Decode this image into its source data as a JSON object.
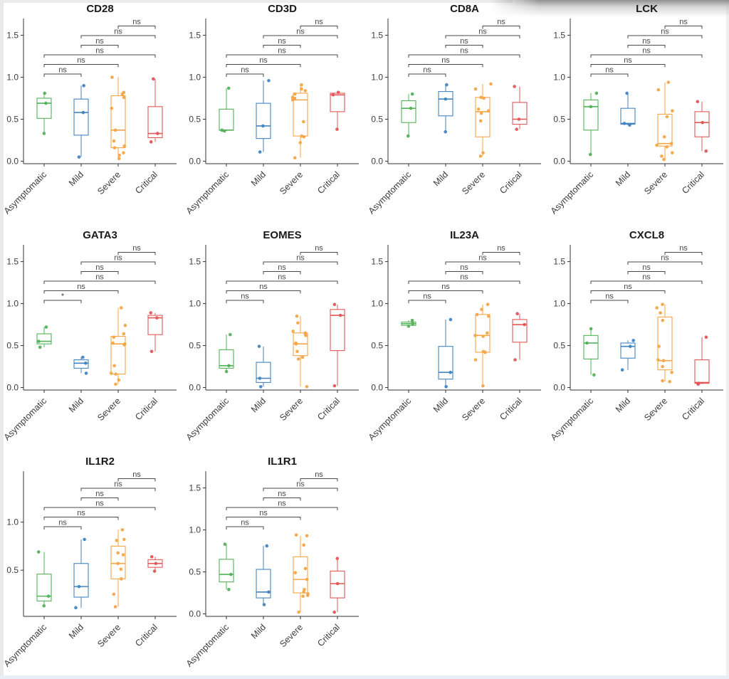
{
  "figure_title": "",
  "chart_data": {
    "type": "box",
    "categories": [
      "Asymptomatic",
      "Mild",
      "Severe",
      "Critical"
    ],
    "group_colors": {
      "Asymptomatic": "#54b25a",
      "Mild": "#4285c2",
      "Severe": "#f6a546",
      "Critical": "#e25757"
    },
    "comparisons": [
      [
        0,
        1
      ],
      [
        0,
        2
      ],
      [
        0,
        3
      ],
      [
        1,
        2
      ],
      [
        1,
        3
      ],
      [
        2,
        3
      ]
    ],
    "ylabel": "",
    "xlabel": "",
    "grid": "off",
    "legend": "none",
    "panels": [
      {
        "title": "CD28",
        "yticks": [
          0.0,
          0.5,
          1.0,
          1.5
        ],
        "ylim": [
          -0.03,
          1.7
        ],
        "sig_labels": [
          "ns",
          "ns",
          "ns",
          "ns",
          "ns",
          "ns"
        ],
        "groups": [
          {
            "name": "Asymptomatic",
            "whisker_low": 0.33,
            "q1": 0.51,
            "median": 0.69,
            "q3": 0.75,
            "whisker_high": 0.81,
            "points": [
              0.81,
              0.69,
              0.33
            ]
          },
          {
            "name": "Mild",
            "whisker_low": 0.05,
            "q1": 0.31,
            "median": 0.58,
            "q3": 0.74,
            "whisker_high": 0.9,
            "points": [
              0.9,
              0.58,
              0.05
            ]
          },
          {
            "name": "Severe",
            "whisker_low": 0.03,
            "q1": 0.16,
            "median": 0.37,
            "q3": 0.78,
            "whisker_high": 1.0,
            "points": [
              1.0,
              0.82,
              0.8,
              0.76,
              0.63,
              0.37,
              0.24,
              0.18,
              0.16,
              0.1,
              0.07,
              0.03
            ]
          },
          {
            "name": "Critical",
            "whisker_low": 0.23,
            "q1": 0.28,
            "median": 0.33,
            "q3": 0.65,
            "whisker_high": 0.98,
            "points": [
              0.98,
              0.33,
              0.23
            ]
          }
        ]
      },
      {
        "title": "CD3D",
        "yticks": [
          0.0,
          0.5,
          1.0,
          1.5
        ],
        "ylim": [
          -0.03,
          1.7
        ],
        "sig_labels": [
          "ns",
          "ns",
          "ns",
          "ns",
          "ns",
          "ns"
        ],
        "groups": [
          {
            "name": "Asymptomatic",
            "whisker_low": 0.36,
            "q1": 0.37,
            "median": 0.37,
            "q3": 0.62,
            "whisker_high": 0.87,
            "points": [
              0.87,
              0.37,
              0.36
            ]
          },
          {
            "name": "Mild",
            "whisker_low": 0.11,
            "q1": 0.27,
            "median": 0.42,
            "q3": 0.69,
            "whisker_high": 0.96,
            "points": [
              0.96,
              0.42,
              0.11
            ]
          },
          {
            "name": "Severe",
            "whisker_low": 0.04,
            "q1": 0.3,
            "median": 0.73,
            "q3": 0.81,
            "whisker_high": 0.91,
            "points": [
              0.91,
              0.86,
              0.84,
              0.8,
              0.76,
              0.75,
              0.73,
              0.47,
              0.3,
              0.29,
              0.22,
              0.04
            ]
          },
          {
            "name": "Critical",
            "whisker_low": 0.38,
            "q1": 0.59,
            "median": 0.79,
            "q3": 0.81,
            "whisker_high": 0.82,
            "points": [
              0.82,
              0.79,
              0.38
            ]
          }
        ]
      },
      {
        "title": "CD8A",
        "yticks": [
          0.0,
          0.5,
          1.0,
          1.5
        ],
        "ylim": [
          -0.03,
          1.7
        ],
        "sig_labels": [
          "ns",
          "ns",
          "ns",
          "ns",
          "ns",
          "ns"
        ],
        "groups": [
          {
            "name": "Asymptomatic",
            "whisker_low": 0.3,
            "q1": 0.46,
            "median": 0.63,
            "q3": 0.72,
            "whisker_high": 0.8,
            "points": [
              0.8,
              0.63,
              0.3
            ]
          },
          {
            "name": "Mild",
            "whisker_low": 0.35,
            "q1": 0.54,
            "median": 0.74,
            "q3": 0.83,
            "whisker_high": 0.91,
            "points": [
              0.91,
              0.74,
              0.35
            ]
          },
          {
            "name": "Severe",
            "whisker_low": 0.06,
            "q1": 0.29,
            "median": 0.59,
            "q3": 0.76,
            "whisker_high": 0.92,
            "points": [
              0.92,
              0.86,
              0.76,
              0.75,
              0.62,
              0.6,
              0.57,
              0.48,
              0.1,
              0.06
            ]
          },
          {
            "name": "Critical",
            "whisker_low": 0.38,
            "q1": 0.44,
            "median": 0.5,
            "q3": 0.7,
            "whisker_high": 0.89,
            "points": [
              0.89,
              0.5,
              0.38
            ]
          }
        ]
      },
      {
        "title": "LCK",
        "yticks": [
          0.0,
          0.5,
          1.0,
          1.5
        ],
        "ylim": [
          -0.03,
          1.7
        ],
        "sig_labels": [
          "ns",
          "ns",
          "ns",
          "ns",
          "ns",
          "ns"
        ],
        "groups": [
          {
            "name": "Asymptomatic",
            "whisker_low": 0.08,
            "q1": 0.37,
            "median": 0.65,
            "q3": 0.73,
            "whisker_high": 0.81,
            "points": [
              0.81,
              0.65,
              0.08
            ]
          },
          {
            "name": "Mild",
            "whisker_low": 0.43,
            "q1": 0.44,
            "median": 0.45,
            "q3": 0.63,
            "whisker_high": 0.81,
            "points": [
              0.81,
              0.45,
              0.43
            ]
          },
          {
            "name": "Severe",
            "whisker_low": 0.02,
            "q1": 0.18,
            "median": 0.21,
            "q3": 0.56,
            "whisker_high": 0.94,
            "points": [
              0.94,
              0.85,
              0.6,
              0.53,
              0.29,
              0.21,
              0.19,
              0.17,
              0.1,
              0.06,
              0.02
            ]
          },
          {
            "name": "Critical",
            "whisker_low": 0.12,
            "q1": 0.29,
            "median": 0.46,
            "q3": 0.59,
            "whisker_high": 0.71,
            "points": [
              0.71,
              0.46,
              0.12
            ]
          }
        ]
      },
      {
        "title": "GATA3",
        "yticks": [
          0.0,
          0.5,
          1.0,
          1.5
        ],
        "ylim": [
          -0.03,
          1.7
        ],
        "sig_labels": [
          "*",
          "ns",
          "ns",
          "ns",
          "ns",
          "ns"
        ],
        "groups": [
          {
            "name": "Asymptomatic",
            "whisker_low": 0.48,
            "q1": 0.52,
            "median": 0.55,
            "q3": 0.64,
            "whisker_high": 0.72,
            "points": [
              0.72,
              0.55,
              0.48
            ]
          },
          {
            "name": "Mild",
            "whisker_low": 0.17,
            "q1": 0.23,
            "median": 0.29,
            "q3": 0.33,
            "whisker_high": 0.36,
            "points": [
              0.36,
              0.29,
              0.17
            ]
          },
          {
            "name": "Severe",
            "whisker_low": 0.04,
            "q1": 0.16,
            "median": 0.52,
            "q3": 0.61,
            "whisker_high": 0.95,
            "points": [
              0.95,
              0.74,
              0.64,
              0.6,
              0.53,
              0.52,
              0.51,
              0.26,
              0.17,
              0.16,
              0.09,
              0.04
            ]
          },
          {
            "name": "Critical",
            "whisker_low": 0.43,
            "q1": 0.63,
            "median": 0.83,
            "q3": 0.86,
            "whisker_high": 0.89,
            "points": [
              0.89,
              0.83,
              0.43
            ]
          }
        ]
      },
      {
        "title": "EOMES",
        "yticks": [
          0.0,
          0.5,
          1.0,
          1.5
        ],
        "ylim": [
          -0.03,
          1.7
        ],
        "sig_labels": [
          "ns",
          "ns",
          "ns",
          "ns",
          "ns",
          "ns"
        ],
        "groups": [
          {
            "name": "Asymptomatic",
            "whisker_low": 0.19,
            "q1": 0.23,
            "median": 0.26,
            "q3": 0.45,
            "whisker_high": 0.63,
            "points": [
              0.63,
              0.26,
              0.19
            ]
          },
          {
            "name": "Mild",
            "whisker_low": 0.01,
            "q1": 0.06,
            "median": 0.11,
            "q3": 0.3,
            "whisker_high": 0.49,
            "points": [
              0.49,
              0.11,
              0.01
            ]
          },
          {
            "name": "Severe",
            "whisker_low": 0.01,
            "q1": 0.38,
            "median": 0.52,
            "q3": 0.65,
            "whisker_high": 0.85,
            "points": [
              0.85,
              0.77,
              0.67,
              0.65,
              0.63,
              0.62,
              0.53,
              0.52,
              0.43,
              0.36,
              0.34,
              0.01
            ]
          },
          {
            "name": "Critical",
            "whisker_low": 0.02,
            "q1": 0.44,
            "median": 0.86,
            "q3": 0.93,
            "whisker_high": 0.99,
            "points": [
              0.99,
              0.86,
              0.02
            ]
          }
        ]
      },
      {
        "title": "IL23A",
        "yticks": [
          0.0,
          0.5,
          1.0,
          1.5
        ],
        "ylim": [
          -0.03,
          1.7
        ],
        "sig_labels": [
          "ns",
          "ns",
          "ns",
          "ns",
          "ns",
          "ns"
        ],
        "groups": [
          {
            "name": "Asymptomatic",
            "whisker_low": 0.73,
            "q1": 0.74,
            "median": 0.76,
            "q3": 0.78,
            "whisker_high": 0.8,
            "points": [
              0.8,
              0.76,
              0.73
            ]
          },
          {
            "name": "Mild",
            "whisker_low": 0.01,
            "q1": 0.1,
            "median": 0.18,
            "q3": 0.49,
            "whisker_high": 0.81,
            "points": [
              0.81,
              0.18,
              0.01
            ]
          },
          {
            "name": "Severe",
            "whisker_low": 0.02,
            "q1": 0.42,
            "median": 0.62,
            "q3": 0.87,
            "whisker_high": 0.99,
            "points": [
              0.99,
              0.93,
              0.87,
              0.85,
              0.65,
              0.62,
              0.61,
              0.43,
              0.42,
              0.33,
              0.02
            ]
          },
          {
            "name": "Critical",
            "whisker_low": 0.33,
            "q1": 0.54,
            "median": 0.75,
            "q3": 0.81,
            "whisker_high": 0.88,
            "points": [
              0.88,
              0.75,
              0.33
            ]
          }
        ]
      },
      {
        "title": "CXCL8",
        "yticks": [
          0.0,
          0.5,
          1.0,
          1.5
        ],
        "ylim": [
          -0.03,
          1.7
        ],
        "sig_labels": [
          "ns",
          "ns",
          "ns",
          "ns",
          "ns",
          "ns"
        ],
        "groups": [
          {
            "name": "Asymptomatic",
            "whisker_low": 0.15,
            "q1": 0.34,
            "median": 0.53,
            "q3": 0.62,
            "whisker_high": 0.7,
            "points": [
              0.7,
              0.53,
              0.15
            ]
          },
          {
            "name": "Mild",
            "whisker_low": 0.21,
            "q1": 0.35,
            "median": 0.49,
            "q3": 0.53,
            "whisker_high": 0.56,
            "points": [
              0.56,
              0.49,
              0.21
            ]
          },
          {
            "name": "Severe",
            "whisker_low": 0.07,
            "q1": 0.21,
            "median": 0.32,
            "q3": 0.84,
            "whisker_high": 0.99,
            "points": [
              0.99,
              0.95,
              0.89,
              0.8,
              0.49,
              0.33,
              0.32,
              0.25,
              0.18,
              0.08,
              0.07
            ]
          },
          {
            "name": "Critical",
            "whisker_low": 0.04,
            "q1": 0.05,
            "median": 0.06,
            "q3": 0.33,
            "whisker_high": 0.6,
            "points": [
              0.6,
              0.05,
              0.04
            ]
          }
        ]
      },
      {
        "title": "IL1R2",
        "yticks": [
          0.5,
          1.0
        ],
        "ylim": [
          0.02,
          1.53
        ],
        "sig_labels": [
          "ns",
          "ns",
          "ns",
          "ns",
          "ns",
          "ns"
        ],
        "groups": [
          {
            "name": "Asymptomatic",
            "whisker_low": 0.13,
            "q1": 0.18,
            "median": 0.23,
            "q3": 0.46,
            "whisker_high": 0.69,
            "points": [
              0.69,
              0.23,
              0.13
            ]
          },
          {
            "name": "Mild",
            "whisker_low": 0.11,
            "q1": 0.22,
            "median": 0.33,
            "q3": 0.57,
            "whisker_high": 0.82,
            "points": [
              0.82,
              0.33,
              0.11
            ]
          },
          {
            "name": "Severe",
            "whisker_low": 0.12,
            "q1": 0.41,
            "median": 0.57,
            "q3": 0.75,
            "whisker_high": 0.92,
            "points": [
              0.92,
              0.82,
              0.81,
              0.68,
              0.66,
              0.57,
              0.51,
              0.41,
              0.25,
              0.12
            ]
          },
          {
            "name": "Critical",
            "whisker_low": 0.49,
            "q1": 0.53,
            "median": 0.57,
            "q3": 0.61,
            "whisker_high": 0.64,
            "points": [
              0.64,
              0.57,
              0.49
            ]
          }
        ]
      },
      {
        "title": "IL1R1",
        "yticks": [
          0.0,
          0.5,
          1.0,
          1.5
        ],
        "ylim": [
          -0.03,
          1.7
        ],
        "sig_labels": [
          "ns",
          "ns",
          "ns",
          "ns",
          "ns",
          "ns"
        ],
        "groups": [
          {
            "name": "Asymptomatic",
            "whisker_low": 0.29,
            "q1": 0.38,
            "median": 0.47,
            "q3": 0.65,
            "whisker_high": 0.83,
            "points": [
              0.83,
              0.47,
              0.29
            ]
          },
          {
            "name": "Mild",
            "whisker_low": 0.11,
            "q1": 0.19,
            "median": 0.26,
            "q3": 0.53,
            "whisker_high": 0.81,
            "points": [
              0.81,
              0.26,
              0.11
            ]
          },
          {
            "name": "Severe",
            "whisker_low": 0.02,
            "q1": 0.25,
            "median": 0.41,
            "q3": 0.68,
            "whisker_high": 0.93,
            "points": [
              0.94,
              0.93,
              0.82,
              0.54,
              0.49,
              0.41,
              0.29,
              0.26,
              0.24,
              0.22,
              0.21,
              0.02
            ]
          },
          {
            "name": "Critical",
            "whisker_low": 0.02,
            "q1": 0.19,
            "median": 0.36,
            "q3": 0.51,
            "whisker_high": 0.66,
            "points": [
              0.66,
              0.36,
              0.02
            ]
          }
        ]
      }
    ]
  }
}
